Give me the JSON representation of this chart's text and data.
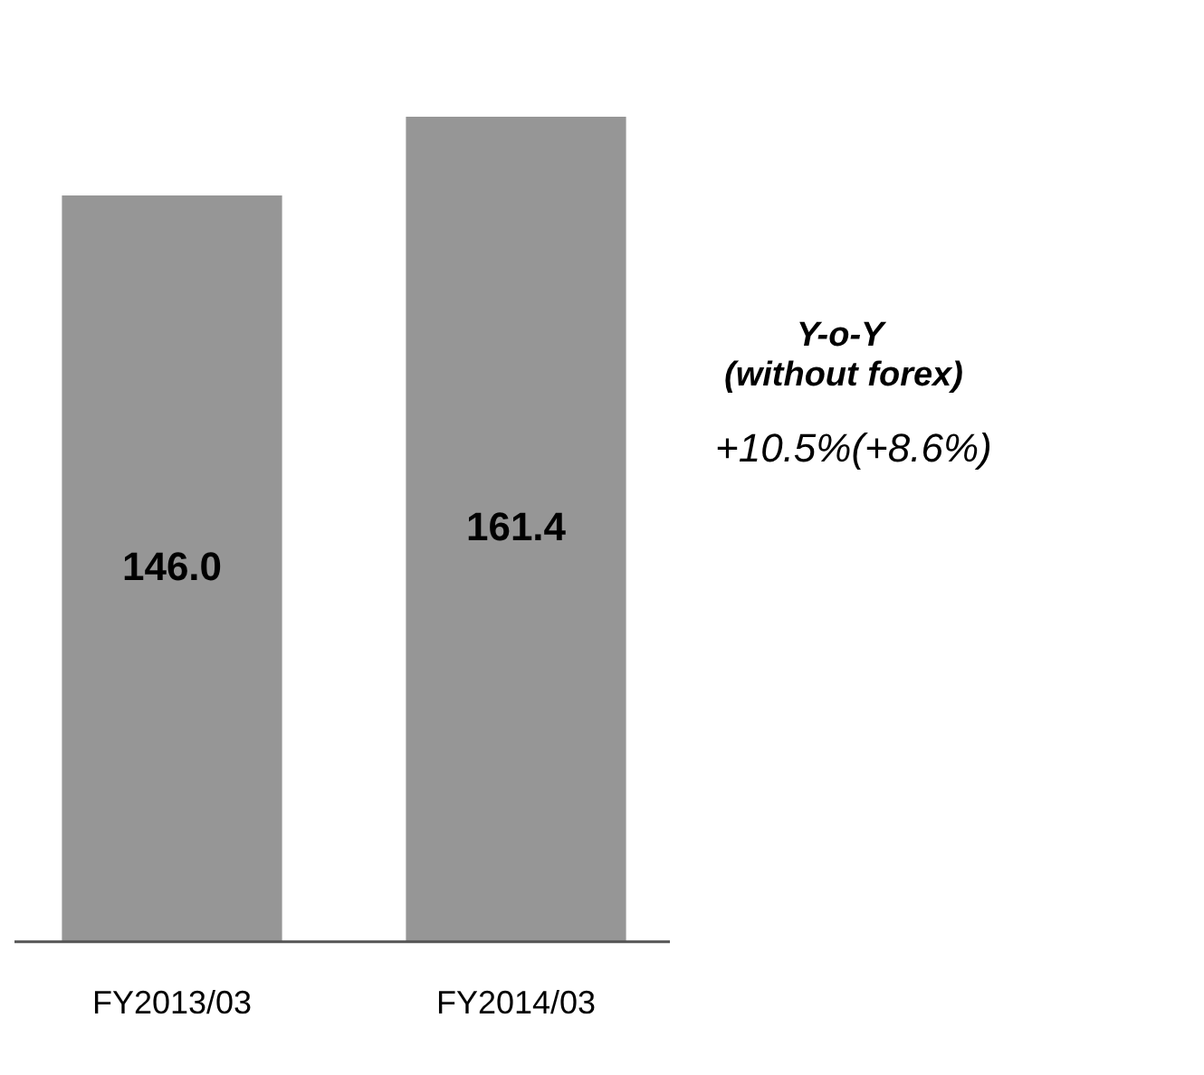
{
  "chart_data": {
    "type": "bar",
    "categories": [
      "FY2013/03",
      "FY2014/03"
    ],
    "values": [
      146.0,
      161.4
    ],
    "value_labels": [
      "146.0",
      "161.4"
    ],
    "color": "#969696",
    "grid": false,
    "legend": false,
    "tick_labels": "x",
    "annotations": [
      "Y-o-Y",
      "(without forex)",
      "+10.5%(+8.6%)"
    ]
  }
}
